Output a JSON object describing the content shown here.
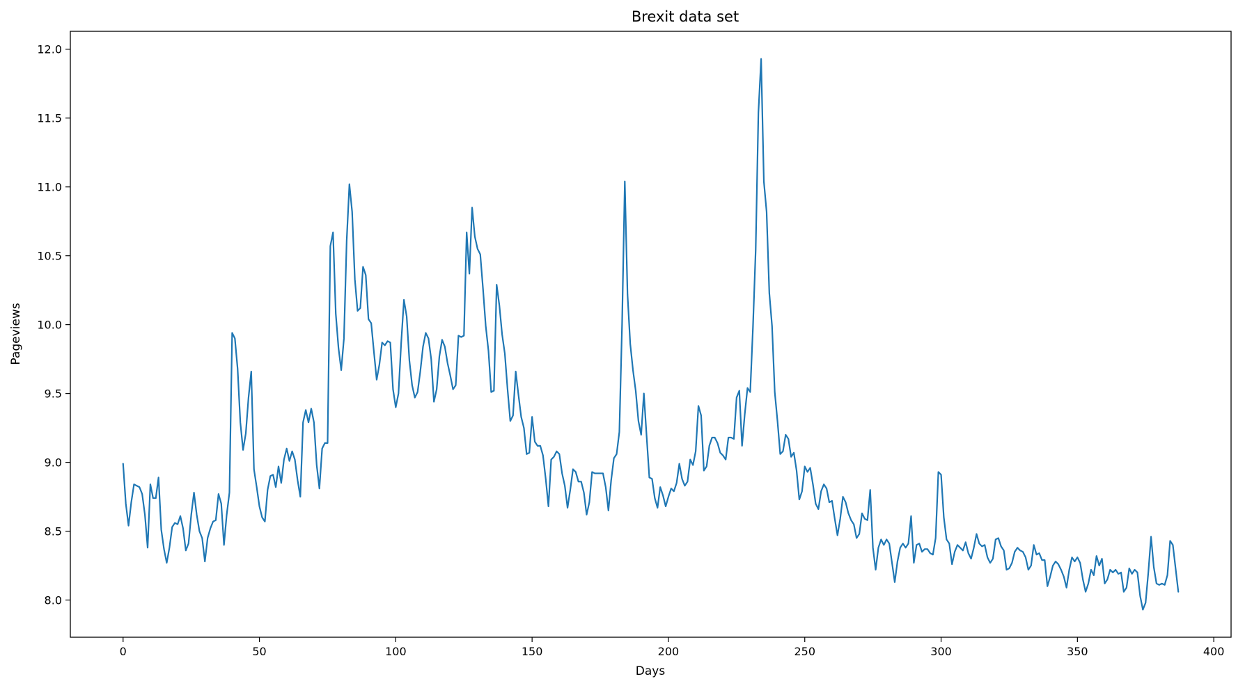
{
  "chart_data": {
    "type": "line",
    "title": "Brexit data set",
    "xlabel": "Days",
    "ylabel": "Pageviews",
    "xlim": [
      -19.35,
      406.35
    ],
    "ylim": [
      7.73,
      12.13
    ],
    "xticks": [
      0,
      50,
      100,
      150,
      200,
      250,
      300,
      350,
      400
    ],
    "yticks": [
      8.0,
      8.5,
      9.0,
      9.5,
      10.0,
      10.5,
      11.0,
      11.5,
      12.0
    ],
    "ytick_labels": [
      "8.0",
      "8.5",
      "9.0",
      "9.5",
      "10.0",
      "10.5",
      "11.0",
      "11.5",
      "12.0"
    ],
    "grid": false,
    "line_color": "#1f77b4",
    "series": [
      {
        "x_start": 0,
        "values": [
          8.99,
          8.7,
          8.54,
          8.71,
          8.84,
          8.83,
          8.82,
          8.77,
          8.62,
          8.38,
          8.84,
          8.74,
          8.74,
          8.89,
          8.51,
          8.37,
          8.27,
          8.38,
          8.53,
          8.56,
          8.55,
          8.61,
          8.52,
          8.36,
          8.41,
          8.62,
          8.78,
          8.62,
          8.5,
          8.45,
          8.28,
          8.45,
          8.52,
          8.57,
          8.58,
          8.77,
          8.7,
          8.4,
          8.62,
          8.78,
          9.94,
          9.9,
          9.68,
          9.29,
          9.09,
          9.21,
          9.47,
          9.66,
          8.95,
          8.82,
          8.68,
          8.6,
          8.57,
          8.8,
          8.9,
          8.91,
          8.82,
          8.97,
          8.85,
          9.02,
          9.1,
          9.01,
          9.08,
          9.02,
          8.87,
          8.75,
          9.29,
          9.38,
          9.29,
          9.39,
          9.29,
          8.98,
          8.81,
          9.1,
          9.14,
          9.14,
          10.57,
          10.67,
          10.08,
          9.83,
          9.67,
          9.9,
          10.61,
          11.02,
          10.82,
          10.33,
          10.1,
          10.12,
          10.42,
          10.36,
          10.04,
          10.01,
          9.8,
          9.6,
          9.71,
          9.87,
          9.85,
          9.88,
          9.87,
          9.53,
          9.4,
          9.5,
          9.87,
          10.18,
          10.06,
          9.74,
          9.56,
          9.47,
          9.51,
          9.66,
          9.84,
          9.94,
          9.9,
          9.75,
          9.44,
          9.53,
          9.77,
          9.89,
          9.84,
          9.72,
          9.63,
          9.53,
          9.56,
          9.92,
          9.91,
          9.92,
          10.67,
          10.37,
          10.85,
          10.64,
          10.55,
          10.51,
          10.26,
          9.99,
          9.81,
          9.51,
          9.52,
          10.29,
          10.14,
          9.93,
          9.79,
          9.53,
          9.3,
          9.34,
          9.66,
          9.49,
          9.33,
          9.25,
          9.06,
          9.07,
          9.33,
          9.15,
          9.12,
          9.12,
          9.05,
          8.88,
          8.68,
          9.02,
          9.04,
          9.08,
          9.06,
          8.92,
          8.83,
          8.67,
          8.8,
          8.95,
          8.93,
          8.86,
          8.86,
          8.78,
          8.62,
          8.71,
          8.93,
          8.92,
          8.92,
          8.92,
          8.92,
          8.82,
          8.65,
          8.87,
          9.03,
          9.06,
          9.22,
          10.0,
          11.04,
          10.22,
          9.86,
          9.67,
          9.52,
          9.3,
          9.2,
          9.5,
          9.19,
          8.89,
          8.88,
          8.74,
          8.67,
          8.82,
          8.76,
          8.68,
          8.75,
          8.81,
          8.79,
          8.85,
          8.99,
          8.88,
          8.83,
          8.86,
          9.02,
          8.98,
          9.08,
          9.41,
          9.34,
          8.94,
          8.97,
          9.12,
          9.18,
          9.18,
          9.14,
          9.07,
          9.05,
          9.02,
          9.18,
          9.18,
          9.17,
          9.47,
          9.52,
          9.12,
          9.35,
          9.54,
          9.51,
          9.98,
          10.54,
          11.54,
          11.93,
          11.04,
          10.82,
          10.23,
          9.99,
          9.51,
          9.3,
          9.06,
          9.08,
          9.2,
          9.17,
          9.04,
          9.07,
          8.94,
          8.73,
          8.79,
          8.97,
          8.93,
          8.96,
          8.84,
          8.7,
          8.66,
          8.79,
          8.84,
          8.81,
          8.71,
          8.72,
          8.59,
          8.47,
          8.59,
          8.75,
          8.71,
          8.63,
          8.58,
          8.55,
          8.45,
          8.48,
          8.63,
          8.59,
          8.58,
          8.8,
          8.38,
          8.22,
          8.38,
          8.44,
          8.4,
          8.44,
          8.41,
          8.27,
          8.13,
          8.28,
          8.38,
          8.41,
          8.38,
          8.41,
          8.61,
          8.27,
          8.4,
          8.41,
          8.35,
          8.37,
          8.37,
          8.34,
          8.33,
          8.45,
          8.93,
          8.91,
          8.6,
          8.44,
          8.41,
          8.26,
          8.35,
          8.4,
          8.38,
          8.36,
          8.42,
          8.34,
          8.3,
          8.38,
          8.48,
          8.41,
          8.39,
          8.4,
          8.31,
          8.27,
          8.3,
          8.44,
          8.45,
          8.39,
          8.36,
          8.22,
          8.23,
          8.27,
          8.35,
          8.38,
          8.36,
          8.35,
          8.31,
          8.22,
          8.25,
          8.4,
          8.33,
          8.34,
          8.29,
          8.29,
          8.1,
          8.17,
          8.25,
          8.28,
          8.26,
          8.22,
          8.17,
          8.09,
          8.22,
          8.31,
          8.28,
          8.31,
          8.27,
          8.15,
          8.06,
          8.12,
          8.22,
          8.18,
          8.32,
          8.25,
          8.3,
          8.12,
          8.15,
          8.22,
          8.2,
          8.22,
          8.19,
          8.2,
          8.06,
          8.09,
          8.23,
          8.19,
          8.22,
          8.2,
          8.03,
          7.93,
          7.98,
          8.2,
          8.46,
          8.24,
          8.12,
          8.11,
          8.12,
          8.11,
          8.18,
          8.43,
          8.4,
          8.23,
          8.06
        ]
      }
    ]
  }
}
